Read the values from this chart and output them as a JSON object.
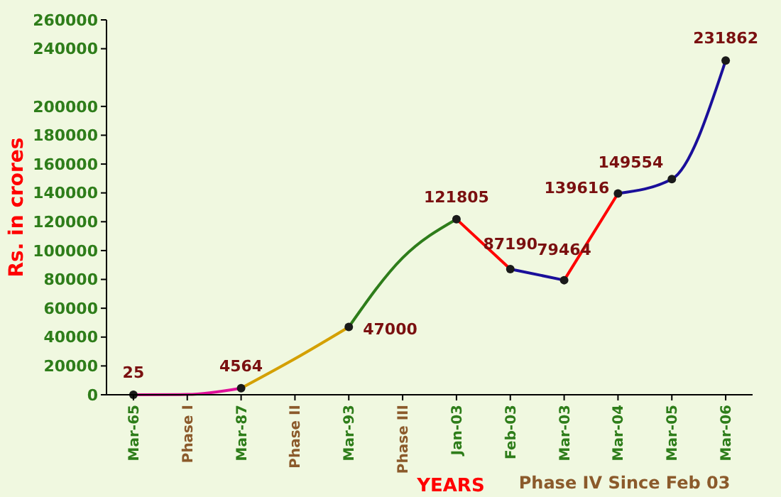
{
  "chart_data": {
    "type": "line",
    "xlabel": "YEARS",
    "ylabel": "Rs. in crores",
    "annotations": [
      "Phase IV Since Feb 03"
    ],
    "categories": [
      "Mar-65",
      "Phase I",
      "Mar-87",
      "Phase II",
      "Mar-93",
      "Phase III",
      "Jan-03",
      "Feb-03",
      "Mar-03",
      "Mar-04",
      "Mar-05",
      "Mar-06"
    ],
    "ylim": [
      0,
      260000
    ],
    "yticks": [
      0,
      20000,
      40000,
      60000,
      80000,
      100000,
      120000,
      140000,
      160000,
      180000,
      200000,
      240000,
      260000
    ],
    "grid": false,
    "line_style": "solid",
    "series": [
      {
        "color": "#e0109a",
        "values": [
          25,
          200,
          4564,
          null,
          null,
          null,
          null,
          null,
          null,
          null,
          null,
          null
        ]
      },
      {
        "color": "#d4a000",
        "values": [
          null,
          null,
          4564,
          25000,
          47000,
          null,
          null,
          null,
          null,
          null,
          null,
          null
        ]
      },
      {
        "color": "#2e7d1a",
        "values": [
          null,
          null,
          null,
          null,
          47000,
          95000,
          121805,
          null,
          null,
          null,
          null,
          null
        ]
      },
      {
        "color": "#ff0000",
        "values": [
          null,
          null,
          null,
          null,
          null,
          null,
          121805,
          87190,
          null,
          null,
          null,
          null
        ]
      },
      {
        "color": "#1a0f9a",
        "values": [
          null,
          null,
          null,
          null,
          null,
          null,
          null,
          87190,
          79464,
          null,
          null,
          null
        ]
      },
      {
        "color": "#ff0000",
        "values": [
          null,
          null,
          null,
          null,
          null,
          null,
          null,
          null,
          79464,
          139616,
          null,
          null
        ]
      },
      {
        "color": "#1a0f9a",
        "values": [
          null,
          null,
          null,
          null,
          null,
          null,
          null,
          null,
          null,
          139616,
          149554,
          231862
        ]
      },
      {
        "type": "scatter",
        "color": "#1a1a1a",
        "values": [
          25,
          null,
          4564,
          null,
          47000,
          null,
          121805,
          87190,
          79464,
          139616,
          149554,
          231862
        ],
        "data_labels": true,
        "marker": "circle"
      }
    ]
  }
}
